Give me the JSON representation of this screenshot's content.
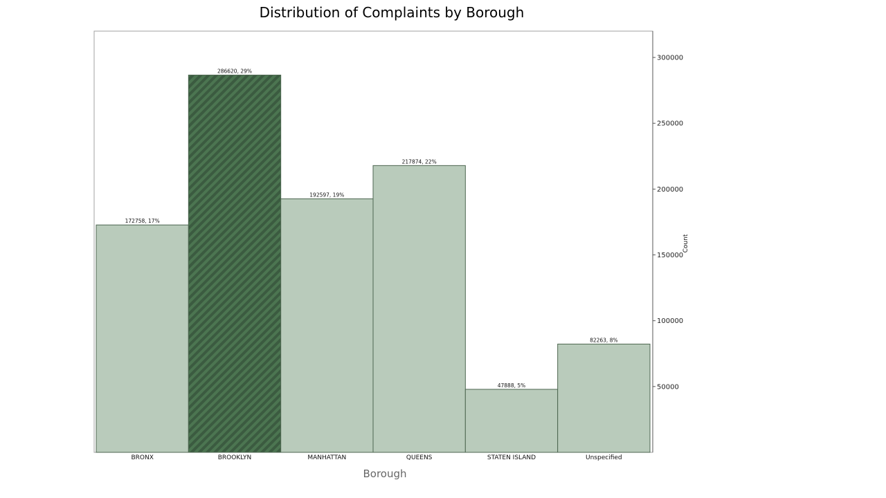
{
  "chart_data": {
    "type": "bar",
    "title": "Distribution of Complaints by Borough",
    "xlabel": "Borough",
    "ylabel": "Count",
    "categories": [
      "BRONX",
      "BROOKLYN",
      "MANHATTAN",
      "QUEENS",
      "STATEN ISLAND",
      "Unspecified"
    ],
    "values": [
      172758,
      286620,
      192597,
      217874,
      47888,
      82263
    ],
    "data_labels": [
      "172758, 17%",
      "286620, 29%",
      "192597, 19%",
      "217874, 22%",
      "47888, 5%",
      "82263, 8%"
    ],
    "highlighted_category": "BROOKLYN",
    "yticks": [
      50000,
      100000,
      150000,
      200000,
      250000,
      300000
    ],
    "ylim": [
      0,
      320000
    ],
    "y_axis_side": "right",
    "grid": false,
    "colors": {
      "bar_fill": "#b9cbbb",
      "bar_stroke": "#4d6650",
      "highlight_fill": "#4c7551",
      "highlight_stripe": "#3b5b40"
    }
  }
}
